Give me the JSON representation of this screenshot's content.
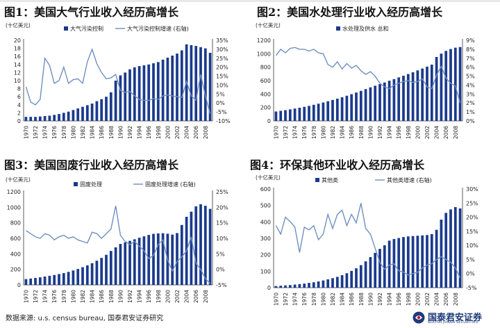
{
  "source_note": "数据来源: u.s. census bureau, 国泰君安证券研究",
  "logo": {
    "cn": "国泰君安证券",
    "en": "GUOTAI JUNAN SECURITIES"
  },
  "colors": {
    "bar": "#1a3a8c",
    "line": "#6f8fc0",
    "text": "#222222"
  },
  "chart_data": [
    {
      "type": "bar+line",
      "title": "图1：美国大气行业收入经历高增长",
      "ylabel_left": "(十亿美元)",
      "ylim_left": [
        0,
        20
      ],
      "yticks_left": [
        0,
        2,
        4,
        6,
        8,
        10,
        12,
        14,
        16,
        18,
        20
      ],
      "ylim_right": [
        -10,
        35
      ],
      "yticks_right": [
        "-10%",
        "-5%",
        "0%",
        "5%",
        "10%",
        "15%",
        "20%",
        "25%",
        "30%",
        "35%"
      ],
      "right_min": -10,
      "right_step": 5,
      "legend": {
        "bar": "大气污染控制",
        "line": "大气污染控制增速 (右轴)"
      },
      "legend_position": "top",
      "x_tick_labels": [
        "1970",
        "1972",
        "1974",
        "1976",
        "1978",
        "1980",
        "1982",
        "1984",
        "1986",
        "1988",
        "1990",
        "1992",
        "1994",
        "1996",
        "1998",
        "2000",
        "2002",
        "2004",
        "2006",
        "2008"
      ],
      "years": [
        1970,
        2009
      ],
      "bar_values": [
        1.0,
        1.0,
        1.0,
        1.1,
        1.2,
        1.3,
        1.5,
        1.7,
        2.0,
        2.3,
        2.7,
        3.1,
        3.5,
        3.9,
        4.3,
        4.9,
        5.4,
        6.0,
        7.1,
        10.0,
        11.3,
        12.0,
        12.8,
        13.3,
        13.6,
        13.8,
        14.0,
        14.3,
        14.6,
        15.2,
        15.7,
        16.2,
        16.7,
        17.5,
        19.0,
        18.8,
        18.6,
        18.3,
        18.0,
        16.9
      ],
      "line_values": [
        9.0,
        0.5,
        -1.0,
        2.0,
        25.0,
        21.0,
        11.0,
        12.5,
        20.0,
        11.0,
        13.0,
        13.5,
        11.0,
        23.0,
        30.0,
        22.0,
        17.0,
        13.5,
        14.0,
        16.0,
        7.0,
        6.0,
        6.5,
        4.0,
        2.0,
        1.5,
        1.5,
        2.5,
        2.0,
        4.0,
        4.5,
        4.0,
        3.5,
        3.0,
        12.0,
        4.0,
        1.5,
        16.0,
        4.0,
        -6.0
      ]
    },
    {
      "type": "bar+line",
      "title": "图2：美国水处理行业收入经历高增长",
      "ylabel_left": "(十亿美元)",
      "ylim_left": [
        0,
        1200
      ],
      "yticks_left": [
        0,
        200,
        400,
        600,
        800,
        1000,
        1200
      ],
      "ylim_right": [
        0,
        9
      ],
      "yticks_right": [
        "0%",
        "1%",
        "2%",
        "3%",
        "4%",
        "5%",
        "6%",
        "7%",
        "8%",
        "9%"
      ],
      "right_min": 0,
      "right_step": 1,
      "legend": {
        "bar": "水处理及供水 总和",
        "line": ""
      },
      "legend_position": "top-right",
      "x_tick_labels": [
        "1970",
        "1972",
        "1974",
        "1976",
        "1978",
        "1980",
        "1982",
        "1984",
        "1986",
        "1988",
        "1990",
        "1992",
        "1994",
        "1996",
        "1998",
        "2000",
        "2002",
        "2004",
        "2006",
        "2008"
      ],
      "years": [
        1970,
        2009
      ],
      "bar_values": [
        140,
        150,
        160,
        172,
        184,
        196,
        210,
        224,
        240,
        256,
        274,
        293,
        312,
        332,
        352,
        375,
        398,
        422,
        447,
        474,
        500,
        524,
        548,
        572,
        598,
        622,
        648,
        672,
        698,
        724,
        752,
        780,
        808,
        838,
        952,
        1002,
        1042,
        1070,
        1090,
        1100
      ],
      "line_values": [
        7.3,
        8.0,
        7.6,
        8.1,
        8.2,
        8.0,
        8.0,
        7.8,
        8.0,
        7.6,
        7.5,
        6.3,
        6.0,
        6.6,
        5.8,
        6.4,
        5.9,
        6.2,
        5.6,
        5.2,
        5.5,
        5.0,
        4.2,
        3.8,
        3.6,
        4.0,
        4.2,
        4.4,
        4.5,
        4.3,
        4.4,
        4.7,
        3.8,
        3.6,
        5.1,
        6.1,
        4.8,
        4.2,
        3.9,
        2.0
      ]
    },
    {
      "type": "bar+line",
      "title": "图3：美国固废行业收入经历高增长",
      "ylabel_left": "(十亿美元)",
      "ylim_left": [
        0,
        1200
      ],
      "yticks_left": [
        0,
        200,
        400,
        600,
        800,
        1000,
        1200
      ],
      "ylim_right": [
        -5,
        25
      ],
      "yticks_right": [
        "-5%",
        "0%",
        "5%",
        "10%",
        "15%",
        "20%",
        "25%"
      ],
      "right_min": -5,
      "right_step": 5,
      "legend": {
        "bar": "固废处理",
        "line": "固废处理增速 (右轴)"
      },
      "legend_position": "top",
      "x_tick_labels": [
        "1970",
        "1972",
        "1974",
        "1976",
        "1978",
        "1980",
        "1982",
        "1984",
        "1986",
        "1988",
        "1990",
        "1992",
        "1994",
        "1996",
        "1998",
        "2000",
        "2002",
        "2004",
        "2006",
        "2008"
      ],
      "years": [
        1970,
        2009
      ],
      "bar_values": [
        75,
        82,
        90,
        98,
        108,
        117,
        128,
        140,
        152,
        168,
        186,
        206,
        228,
        252,
        280,
        312,
        348,
        388,
        438,
        484,
        528,
        548,
        568,
        588,
        608,
        626,
        644,
        658,
        664,
        666,
        660,
        648,
        668,
        772,
        878,
        944,
        1012,
        1040,
        1020,
        980
      ],
      "line_values": [
        12.5,
        11.5,
        10.5,
        10.0,
        11.5,
        11.0,
        9.5,
        10.5,
        11.0,
        10.0,
        10.5,
        9.5,
        9.0,
        8.5,
        12.0,
        11.5,
        10.0,
        11.5,
        13.0,
        20.5,
        11.0,
        9.0,
        8.0,
        9.0,
        7.5,
        6.0,
        3.5,
        4.5,
        8.0,
        9.5,
        3.0,
        -0.5,
        2.5,
        4.0,
        6.0,
        10.5,
        2.0,
        0.0,
        -3.0,
        -4.5
      ]
    },
    {
      "type": "bar+line",
      "title": "图4：环保其他环业收入经历高增长",
      "ylabel_left": "(十亿美元)",
      "ylim_left": [
        0,
        600
      ],
      "yticks_left": [
        0,
        100,
        200,
        300,
        400,
        500,
        600
      ],
      "ylim_right": [
        -5,
        30
      ],
      "yticks_right": [
        "-5%",
        "0%",
        "5%",
        "10%",
        "15%",
        "20%",
        "25%",
        "30%"
      ],
      "right_min": -5,
      "right_step": 5,
      "legend": {
        "bar": "其他类",
        "line": "其他类增速 (右轴)"
      },
      "legend_position": "top",
      "x_tick_labels": [
        "1970",
        "1972",
        "1974",
        "1976",
        "1978",
        "1980",
        "1982",
        "1984",
        "1986",
        "1988",
        "1990",
        "1992",
        "1994",
        "1996",
        "1998",
        "2000",
        "2002",
        "2004",
        "2006",
        "2008"
      ],
      "years": [
        1970,
        2009
      ],
      "bar_values": [
        10,
        12,
        14,
        16,
        19,
        22,
        25,
        29,
        33,
        38,
        44,
        51,
        58,
        66,
        76,
        88,
        102,
        118,
        137,
        160,
        186,
        212,
        236,
        258,
        286,
        296,
        302,
        308,
        312,
        314,
        316,
        318,
        320,
        326,
        352,
        414,
        455,
        476,
        490,
        482
      ],
      "line_values": [
        17.0,
        14.0,
        20.0,
        18.5,
        16.5,
        7.5,
        16.5,
        15.5,
        17.0,
        12.0,
        14.0,
        21.0,
        16.0,
        21.0,
        22.5,
        17.0,
        21.0,
        18.0,
        25.0,
        16.0,
        14.0,
        9.0,
        4.0,
        1.5,
        3.0,
        3.5,
        1.0,
        0.5,
        -0.5,
        0.0,
        0.5,
        2.0,
        3.0,
        3.5,
        5.0,
        6.0,
        5.0,
        4.0,
        2.0,
        -1.5
      ]
    }
  ]
}
